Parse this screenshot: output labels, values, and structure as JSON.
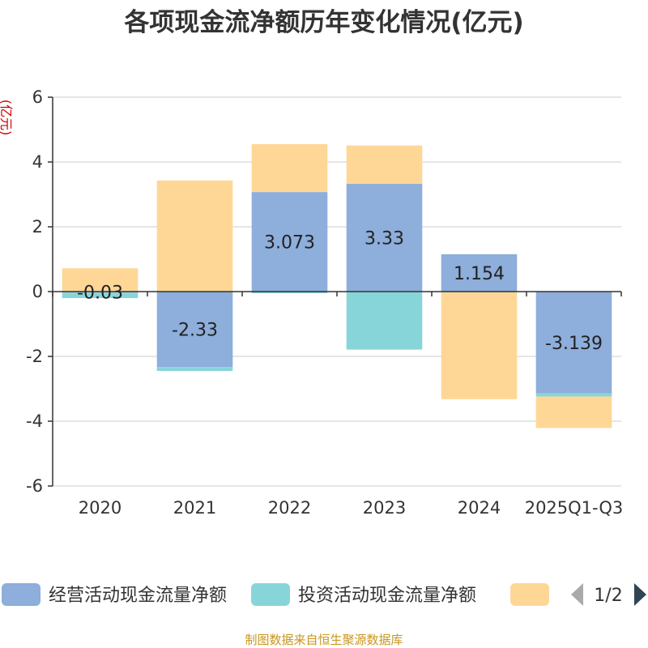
{
  "chart_data": {
    "type": "bar",
    "stacked": true,
    "title": "各项现金流净额历年变化情况(亿元)",
    "ylabel": "(亿元)",
    "xlabel": "",
    "categories": [
      "2020",
      "2021",
      "2022",
      "2023",
      "2024",
      "2025Q1-Q3"
    ],
    "ylim": [
      -6,
      6
    ],
    "yticks": [
      6,
      4,
      2,
      0,
      -2,
      -4,
      -6
    ],
    "grid": true,
    "series": [
      {
        "name": "经营活动现金流量净额",
        "color": "#8eaedb",
        "values": [
          -0.03,
          -2.33,
          3.073,
          3.33,
          1.154,
          -3.139
        ],
        "labels": [
          "-0.03",
          "-2.33",
          "3.073",
          "3.33",
          "1.154",
          "-3.139"
        ]
      },
      {
        "name": "投资活动现金流量净额",
        "color": "#88d5d9",
        "values": [
          -0.17,
          -0.12,
          -0.05,
          -1.79,
          -0.02,
          -0.1
        ]
      },
      {
        "name": "",
        "color": "#fed797",
        "values": [
          0.72,
          3.43,
          1.48,
          1.18,
          -3.3,
          -0.97
        ]
      }
    ],
    "legend": {
      "placement": "bottom",
      "page": "1/2"
    }
  },
  "footer": {
    "source": "制图数据来自恒生聚源数据库"
  }
}
